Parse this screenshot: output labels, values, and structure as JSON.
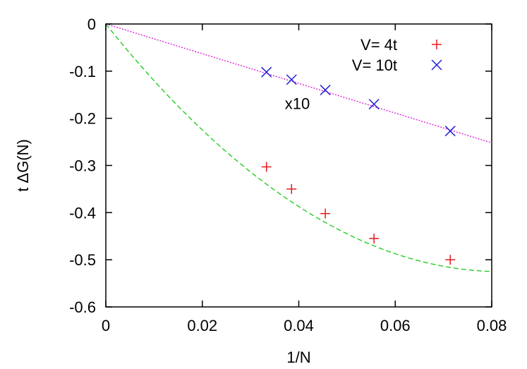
{
  "chart_data": {
    "type": "scatter",
    "xlabel": "1/N",
    "ylabel": "t ΔG(N)",
    "xlim": [
      0,
      0.08
    ],
    "ylim": [
      -0.6,
      0
    ],
    "x_ticks": [
      0,
      0.02,
      0.04,
      0.06,
      0.08
    ],
    "x_tick_labels": [
      "0",
      "0.02",
      "0.04",
      "0.06",
      "0.08"
    ],
    "y_ticks": [
      0,
      -0.1,
      -0.2,
      -0.3,
      -0.4,
      -0.5,
      -0.6
    ],
    "y_tick_labels": [
      "0",
      "-0.1",
      "-0.2",
      "-0.3",
      "-0.4",
      "-0.5",
      "-0.6"
    ],
    "grid": false,
    "legend_position": "top-right",
    "annotation": {
      "text": "x10",
      "x": 0.04,
      "y": -0.168
    },
    "series": [
      {
        "name": "V= 4t",
        "marker": "plus",
        "color": "#e41a1c",
        "points": [
          {
            "x": 0.0333,
            "y": -0.303
          },
          {
            "x": 0.0385,
            "y": -0.35
          },
          {
            "x": 0.0455,
            "y": -0.402
          },
          {
            "x": 0.0556,
            "y": -0.455
          },
          {
            "x": 0.0714,
            "y": -0.5
          }
        ],
        "fit": {
          "style": "dashed",
          "color": "#22cc22",
          "form": "quadratic",
          "coefficients": [
            0,
            -12.8,
            78
          ]
        }
      },
      {
        "name": "V= 10t",
        "marker": "cross",
        "color": "#1f1fcf",
        "points": [
          {
            "x": 0.0333,
            "y": -0.102
          },
          {
            "x": 0.0385,
            "y": -0.118
          },
          {
            "x": 0.0455,
            "y": -0.14
          },
          {
            "x": 0.0556,
            "y": -0.17
          },
          {
            "x": 0.0714,
            "y": -0.227
          }
        ],
        "fit": {
          "style": "dotted",
          "color": "#e020e0",
          "form": "linear",
          "coefficients": [
            0,
            -3.15
          ]
        }
      }
    ]
  }
}
